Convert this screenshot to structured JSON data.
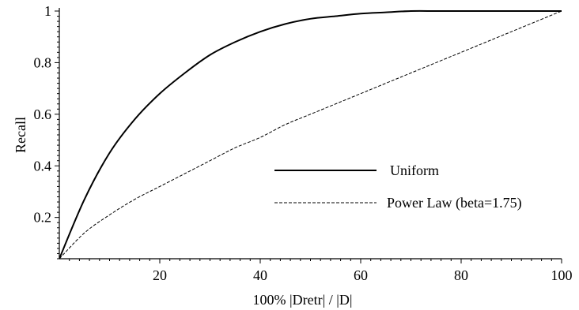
{
  "chart_data": {
    "type": "line",
    "title": "",
    "xlabel": "100%  |Dretr| / |D|",
    "ylabel": "Recall",
    "xlim": [
      0,
      100
    ],
    "ylim": [
      0.04,
      1.0
    ],
    "x_ticks": [
      20,
      40,
      60,
      80,
      100
    ],
    "y_ticks": [
      0.2,
      0.4,
      0.6,
      0.8,
      1
    ],
    "x_tick_labels": [
      "20",
      "40",
      "60",
      "80",
      "100"
    ],
    "y_tick_labels": [
      "0.2",
      "0.4",
      "0.6",
      "0.8",
      "1"
    ],
    "grid": false,
    "legend_position": "middle-right",
    "series": [
      {
        "name": "Uniform",
        "style": "solid",
        "color": "#000000",
        "x": [
          0,
          5,
          10,
          15,
          20,
          25,
          30,
          35,
          40,
          45,
          50,
          55,
          60,
          65,
          70,
          75,
          80,
          85,
          90,
          95,
          100
        ],
        "y": [
          0.04,
          0.27,
          0.45,
          0.58,
          0.68,
          0.76,
          0.83,
          0.88,
          0.92,
          0.95,
          0.97,
          0.98,
          0.99,
          0.995,
          1.0,
          1.0,
          1.0,
          1.0,
          1.0,
          1.0,
          1.0
        ]
      },
      {
        "name": "Power Law (beta=1.75)",
        "style": "dashed",
        "color": "#000000",
        "x": [
          0,
          5,
          10,
          15,
          20,
          25,
          30,
          35,
          40,
          45,
          50,
          55,
          60,
          65,
          70,
          75,
          80,
          85,
          90,
          95,
          100
        ],
        "y": [
          0.04,
          0.14,
          0.21,
          0.27,
          0.32,
          0.37,
          0.42,
          0.47,
          0.51,
          0.56,
          0.6,
          0.64,
          0.68,
          0.72,
          0.76,
          0.8,
          0.84,
          0.88,
          0.92,
          0.96,
          1.0
        ]
      }
    ]
  }
}
